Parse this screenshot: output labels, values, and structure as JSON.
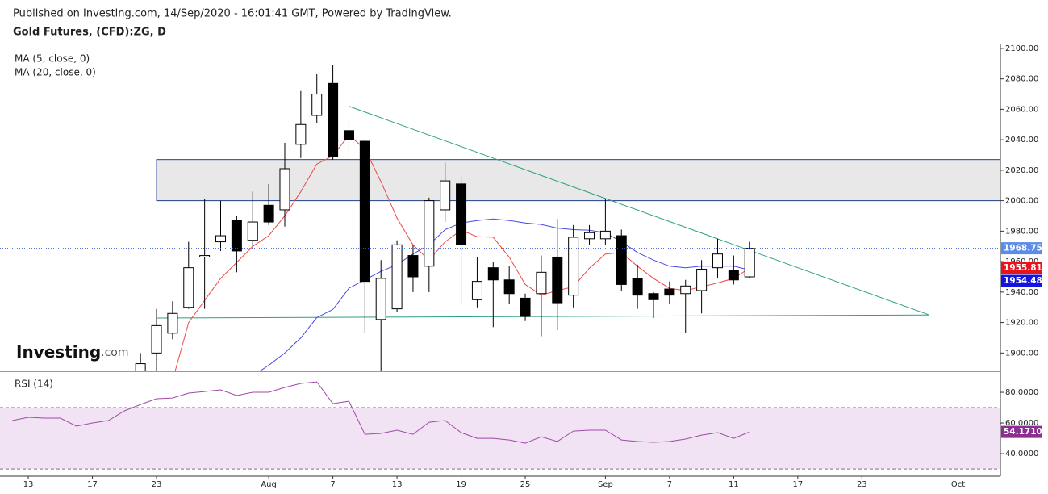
{
  "header": {
    "published": "Published on Investing.com, 14/Sep/2020 - 16:01:41 GMT, Powered by TradingView."
  },
  "logo": {
    "brand": "Investing",
    "suffix": ".com"
  },
  "chart_data": [
    {
      "type": "candlestick",
      "title": "Gold Futures, (CFD):ZG, D",
      "ylim": [
        1888,
        2102.6
      ],
      "yticks": [
        {
          "value": 1900,
          "label": "1900.00"
        },
        {
          "value": 1920,
          "label": "1920.00"
        },
        {
          "value": 1940,
          "label": "1940.00"
        },
        {
          "value": 1960,
          "label": "1960.00"
        },
        {
          "value": 1980,
          "label": "1980.00"
        },
        {
          "value": 2000,
          "label": "2000.00"
        },
        {
          "value": 2020,
          "label": "2020.00"
        },
        {
          "value": 2040,
          "label": "2040.00"
        },
        {
          "value": 2060,
          "label": "2060.00"
        },
        {
          "value": 2080,
          "label": "2080.00"
        },
        {
          "value": 2100,
          "label": "2100.00"
        }
      ],
      "up_color": "#ffffff",
      "down_color": "#000000",
      "open": [
        null,
        null,
        null,
        null,
        null,
        null,
        null,
        null,
        1885,
        1900,
        1913,
        1930,
        1963,
        1973,
        1987,
        1974,
        1997,
        1994,
        2037,
        2056,
        2077,
        2046,
        2039,
        1922,
        1929,
        1964,
        1957,
        1994,
        2011,
        1935,
        1956,
        1948,
        1936,
        1939,
        1963,
        1938,
        1975,
        1975,
        1977,
        1949,
        1939,
        1942,
        1939,
        1941,
        1956,
        1954,
        1950,
        null,
        null,
        null,
        null,
        null,
        null,
        null,
        null,
        null,
        null,
        null,
        null,
        null
      ],
      "high": [
        null,
        null,
        null,
        null,
        null,
        null,
        null,
        null,
        1900,
        1929,
        1934,
        1973,
        2001,
        2000,
        1990,
        2006,
        2011,
        2038,
        2072,
        2083,
        2089,
        2052,
        2040,
        1961,
        1974,
        1971,
        2002,
        2025,
        2016,
        1963,
        1960,
        1957,
        1939,
        1964,
        1988,
        1984,
        1984,
        2001,
        1981,
        1958,
        1940,
        1947,
        1948,
        1961,
        1975,
        1964,
        1973,
        null,
        null,
        null,
        null,
        null,
        null,
        null,
        null,
        null,
        null,
        null,
        null,
        null
      ],
      "low": [
        null,
        null,
        null,
        null,
        null,
        null,
        null,
        null,
        1880,
        1888,
        1909,
        1929,
        1929,
        1967,
        1953,
        1970,
        1984,
        1983,
        2028,
        2051,
        2027,
        2029,
        1913,
        1880,
        1927,
        1940,
        1940,
        1986,
        1932,
        1930,
        1917,
        1932,
        1921,
        1911,
        1915,
        1930,
        1971,
        1971,
        1941,
        1929,
        1923,
        1932,
        1913,
        1926,
        1949,
        1945,
        1949,
        null,
        null,
        null,
        null,
        null,
        null,
        null,
        null,
        null,
        null,
        null,
        null,
        null
      ],
      "close": [
        null,
        null,
        null,
        null,
        null,
        null,
        null,
        null,
        1893,
        1918,
        1926,
        1956,
        1964,
        1977,
        1967,
        1986,
        1986,
        2021,
        2050,
        2070,
        2029,
        2040,
        1947,
        1949,
        1971,
        1950,
        2000,
        2013,
        1971,
        1947,
        1948,
        1939,
        1924,
        1953,
        1933,
        1976,
        1979,
        1980,
        1945,
        1938,
        1935,
        1938,
        1944,
        1955,
        1965,
        1948,
        1968.75,
        null,
        null,
        null,
        null,
        null,
        null,
        null,
        null,
        null,
        null,
        null,
        null,
        null
      ],
      "series": [
        {
          "name": "MA (5, close, 0)",
          "color": "#f04848",
          "values": [
            null,
            null,
            null,
            null,
            null,
            null,
            null,
            null,
            null,
            null,
            1882,
            1920,
            1934.5,
            1949,
            1959.5,
            1970,
            1977,
            1990,
            2006,
            2024,
            2029.5,
            2043,
            2034,
            2012.5,
            1988.6,
            1971,
            1961,
            1973,
            1980.6,
            1976.4,
            1976,
            1963,
            1945,
            1938,
            1941,
            1943.5,
            1955.7,
            1965,
            1966,
            1957,
            1949,
            1942.5,
            1941,
            1943.5,
            1946,
            1949,
            1955.81,
            null,
            null,
            null,
            null,
            null,
            null,
            null,
            null,
            null,
            null,
            null,
            null,
            null
          ]
        },
        {
          "name": "MA (20, close, 0)",
          "color": "#4848e8",
          "values": [
            null,
            null,
            null,
            null,
            null,
            null,
            null,
            null,
            null,
            null,
            null,
            null,
            null,
            null,
            null,
            1885,
            1892,
            1900,
            1910,
            1923.3,
            1928.6,
            1942.5,
            1948,
            1953.6,
            1958,
            1965,
            1971,
            1981,
            1985.4,
            1987,
            1988,
            1987,
            1985.4,
            1984.4,
            1982,
            1981,
            1980.6,
            1979,
            1973,
            1966,
            1961,
            1957,
            1956,
            1957,
            1957,
            1957,
            1954.48,
            null,
            null,
            null,
            null,
            null,
            null,
            null,
            null,
            null,
            null,
            null,
            null,
            null
          ]
        }
      ],
      "zone": {
        "x": 9,
        "y": [
          2000,
          2027
        ],
        "color": "#e8e8e8",
        "border": "#1f3f8a"
      },
      "trendlines": [
        {
          "x": [
            21,
            57.2
          ],
          "y": [
            2062,
            1925
          ],
          "color": "#2e9e86"
        },
        {
          "x": [
            9,
            57.2
          ],
          "y": [
            1923,
            1925
          ],
          "color": "#2e9e86"
        }
      ]
    },
    {
      "type": "line",
      "title": "RSI (14)",
      "categories": [
        null,
        "13",
        null,
        null,
        null,
        "17",
        null,
        null,
        null,
        "23",
        null,
        null,
        null,
        null,
        null,
        null,
        "Aug",
        null,
        null,
        null,
        "7",
        null,
        null,
        null,
        "13",
        null,
        null,
        null,
        "19",
        null,
        null,
        null,
        "25",
        null,
        null,
        null,
        null,
        "Sep",
        null,
        null,
        null,
        "7",
        null,
        null,
        null,
        "11",
        null,
        null,
        null,
        "17",
        null,
        null,
        null,
        "23",
        null,
        null,
        null,
        null,
        null,
        "Oct"
      ],
      "ylim": [
        25.3,
        93.7
      ],
      "yticks": [
        {
          "value": 40,
          "label": "40.0000"
        },
        {
          "value": 60,
          "label": "60.0000"
        },
        {
          "value": 80,
          "label": "80.0000"
        }
      ],
      "band": [
        30,
        70
      ],
      "band_color": "#f1e3f3",
      "series": [
        {
          "name": "RSI (14)",
          "color": "#a049a8",
          "values": [
            61.6,
            63.7,
            63.2,
            63.2,
            57.9,
            60,
            61.6,
            67.9,
            72.1,
            75.8,
            76.3,
            79.5,
            80.5,
            81.6,
            77.9,
            80,
            80,
            83.2,
            85.8,
            86.8,
            72.6,
            74.2,
            52.6,
            53.2,
            55.3,
            52.6,
            60.5,
            61.6,
            53.7,
            50,
            50,
            48.9,
            46.8,
            51,
            47.9,
            54.7,
            55.3,
            55.3,
            48.9,
            47.9,
            47.4,
            47.9,
            49.5,
            52.1,
            53.7,
            50,
            54.171,
            null,
            null,
            null,
            null,
            null,
            null,
            null,
            null,
            null,
            null,
            null,
            null,
            null
          ],
          "value_labels": [
            null,
            null,
            null,
            null,
            null,
            null,
            null,
            null,
            null,
            null,
            null,
            null,
            null,
            null,
            null,
            null,
            null,
            null,
            null,
            null,
            null,
            null,
            null,
            null,
            null,
            null,
            null,
            null,
            null,
            null,
            null,
            null,
            null,
            null,
            null,
            null,
            null,
            null,
            null,
            null,
            null,
            null,
            null,
            null,
            null,
            null,
            "54.1710",
            null,
            null,
            null,
            null,
            null,
            null,
            null,
            null,
            null,
            null,
            null,
            null,
            null
          ]
        }
      ]
    }
  ]
}
